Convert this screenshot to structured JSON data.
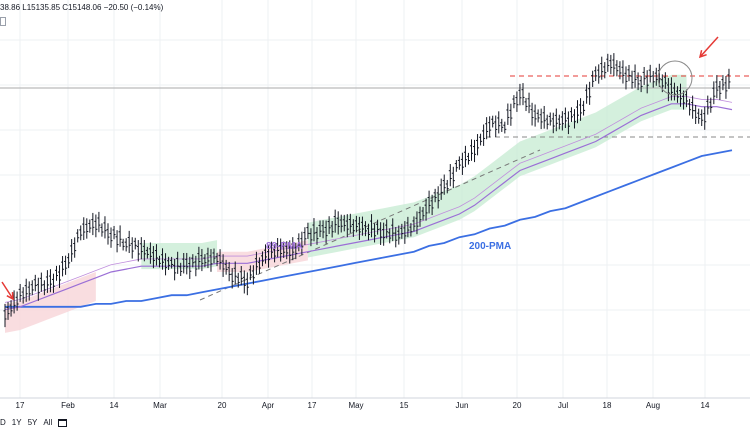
{
  "header": {
    "ohlc_text": "38.86 L15135.85 C15148.06 −20.50 (−0.14%)"
  },
  "range_buttons": [
    "D",
    "1Y",
    "5Y",
    "All"
  ],
  "colors": {
    "price": "#131722",
    "ma_89": "#9b6fd6",
    "ma_200": "#3b6fe3",
    "cloud_bull": "#c9ecd4",
    "cloud_bear": "#f7d5d8",
    "arrow": "#e53935",
    "resistance": "#e53935",
    "support": "#888888",
    "grid": "#eef0f3"
  },
  "chart_data": {
    "type": "candlestick",
    "title": "",
    "xlabel": "",
    "ylabel": "",
    "x_ticks": [
      "17",
      "Feb",
      "14",
      "Mar",
      "20",
      "Apr",
      "17",
      "May",
      "15",
      "Jun",
      "20",
      "Jul",
      "18",
      "Aug",
      "14"
    ],
    "grid": true,
    "ylim": [
      0,
      1
    ],
    "price": [
      0.05,
      0.12,
      0.15,
      0.16,
      0.22,
      0.34,
      0.37,
      0.33,
      0.3,
      0.28,
      0.25,
      0.22,
      0.22,
      0.24,
      0.25,
      0.19,
      0.17,
      0.25,
      0.28,
      0.27,
      0.33,
      0.34,
      0.37,
      0.36,
      0.35,
      0.34,
      0.33,
      0.36,
      0.43,
      0.49,
      0.57,
      0.62,
      0.71,
      0.71,
      0.82,
      0.74,
      0.72,
      0.72,
      0.75,
      0.88,
      0.92,
      0.88,
      0.86,
      0.88,
      0.83,
      0.79,
      0.72,
      0.83,
      0.86
    ],
    "series": [
      {
        "name": "89-PMA",
        "values": [
          0.07,
          0.08,
          0.1,
          0.12,
          0.14,
          0.16,
          0.18,
          0.2,
          0.21,
          0.22,
          0.22,
          0.22,
          0.22,
          0.22,
          0.23,
          0.23,
          0.23,
          0.24,
          0.25,
          0.26,
          0.27,
          0.28,
          0.29,
          0.3,
          0.31,
          0.32,
          0.33,
          0.34,
          0.36,
          0.38,
          0.4,
          0.43,
          0.47,
          0.51,
          0.55,
          0.57,
          0.59,
          0.61,
          0.63,
          0.65,
          0.68,
          0.71,
          0.74,
          0.76,
          0.78,
          0.78,
          0.77,
          0.77,
          0.76
        ]
      },
      {
        "name": "200-PMA",
        "values": [
          0.08,
          0.08,
          0.08,
          0.08,
          0.08,
          0.08,
          0.09,
          0.09,
          0.1,
          0.1,
          0.11,
          0.12,
          0.12,
          0.13,
          0.14,
          0.15,
          0.16,
          0.17,
          0.18,
          0.19,
          0.2,
          0.21,
          0.22,
          0.23,
          0.24,
          0.25,
          0.26,
          0.27,
          0.29,
          0.3,
          0.32,
          0.33,
          0.35,
          0.36,
          0.38,
          0.39,
          0.41,
          0.42,
          0.44,
          0.46,
          0.48,
          0.5,
          0.52,
          0.54,
          0.56,
          0.58,
          0.6,
          0.61,
          0.62
        ]
      }
    ],
    "annotations": {
      "ma89_label": "89-PMA",
      "ma200_label": "200-PMA"
    }
  }
}
